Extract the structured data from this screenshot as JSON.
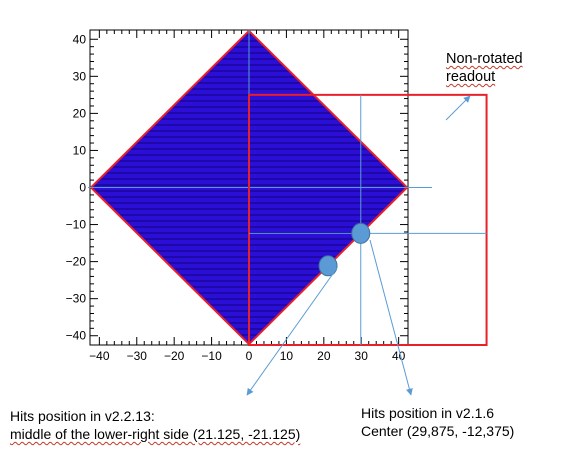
{
  "annotations": {
    "readout": {
      "line1": "Non-rotated",
      "line2": "readout"
    },
    "v2213": {
      "line1": "Hits position in v2.2.13:",
      "line2": "middle of the lower-right side (21.125, -21.125)"
    },
    "v216": {
      "line1": "Hits position in v2.1.6",
      "line2": "Center (29,875, -12,375)"
    }
  },
  "chart_data": {
    "type": "diagram",
    "x_ticks": [
      "−40",
      "−30",
      "−20",
      "−10",
      "0",
      "10",
      "20",
      "30",
      "40"
    ],
    "y_ticks": [
      "40",
      "30",
      "20",
      "10",
      "0",
      "−10",
      "−20",
      "−30",
      "−40"
    ],
    "xlim": [
      -42.5,
      42.5
    ],
    "ylim": [
      -42.5,
      42.5
    ],
    "rotated_readout_corners": [
      [
        0,
        42.25
      ],
      [
        42.25,
        0
      ],
      [
        0,
        -42.25
      ],
      [
        -42.25,
        0
      ]
    ],
    "non_rotated_readout_box": {
      "x": [
        0,
        63.5
      ],
      "y": [
        -42.5,
        25
      ]
    },
    "hits": [
      {
        "version": "v2.2.13",
        "x": 21.125,
        "y": -21.125
      },
      {
        "version": "v2.1.6",
        "x": 29.875,
        "y": -12.375
      }
    ],
    "colors": {
      "fill": "#2b0fd6",
      "fill_stripe": "#1e09a8",
      "outline": "#e8202a",
      "box": "#e8202a",
      "hit": "#5b9bd5",
      "guide": "#5b9bd5",
      "axis": "#000000"
    }
  }
}
